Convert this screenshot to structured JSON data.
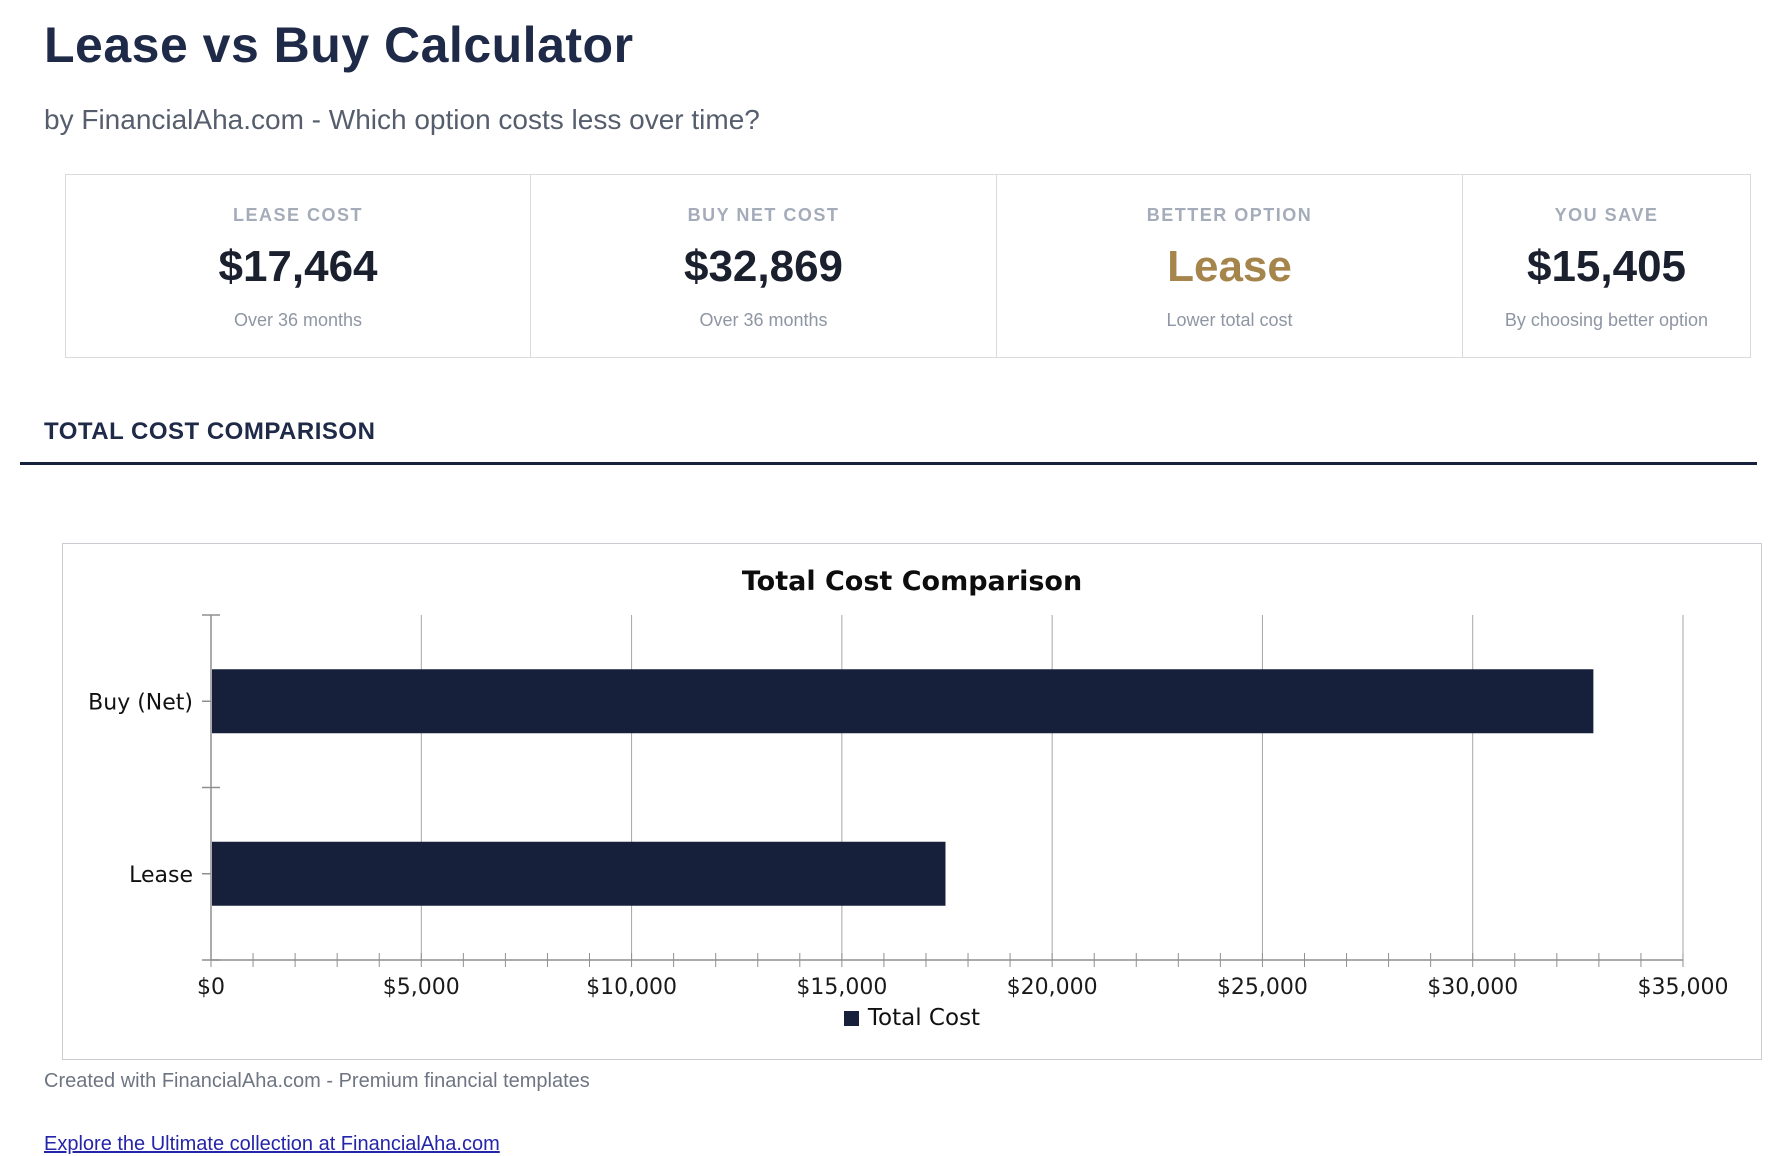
{
  "page": {
    "title": "Lease vs Buy Calculator",
    "subtitle": "by FinancialAha.com - Which option costs less over time?"
  },
  "stats": [
    {
      "label": "LEASE COST",
      "value": "$17,464",
      "sub": "Over 36 months",
      "value_color": "#1a202e"
    },
    {
      "label": "BUY NET COST",
      "value": "$32,869",
      "sub": "Over 36 months",
      "value_color": "#1a202e"
    },
    {
      "label": "BETTER OPTION",
      "value": "Lease",
      "sub": "Lower total cost",
      "value_color": "#a5854b"
    },
    {
      "label": "YOU SAVE",
      "value": "$15,405",
      "sub": "By choosing better option",
      "value_color": "#1a202e"
    }
  ],
  "section": {
    "header": "TOTAL COST COMPARISON"
  },
  "chart_data": {
    "type": "bar",
    "orientation": "horizontal",
    "title": "Total Cost Comparison",
    "categories": [
      "Buy (Net)",
      "Lease"
    ],
    "values": [
      32869,
      17464
    ],
    "series_name": "Total Cost",
    "xlabel": "",
    "ylabel": "",
    "xlim": [
      0,
      35000
    ],
    "x_major_tick": 5000,
    "x_minor_tick": 1000,
    "tick_prefix": "$",
    "grid": true,
    "legend_position": "bottom",
    "bar_color": "#16203a",
    "axis_color": "#8f8f8f",
    "gridline_color": "#a6a6a6"
  },
  "footer": {
    "credit": "Created with FinancialAha.com - Premium financial templates",
    "link": "Explore the Ultimate collection at FinancialAha.com"
  },
  "colors": {
    "heading_navy": "#1e2a47",
    "underline_navy": "#16213e",
    "stat_label_gray": "#a4abb9",
    "stat_sub_gray": "#8e96a3",
    "better_option_gold": "#a5854b",
    "link_blue": "#2525a9"
  }
}
